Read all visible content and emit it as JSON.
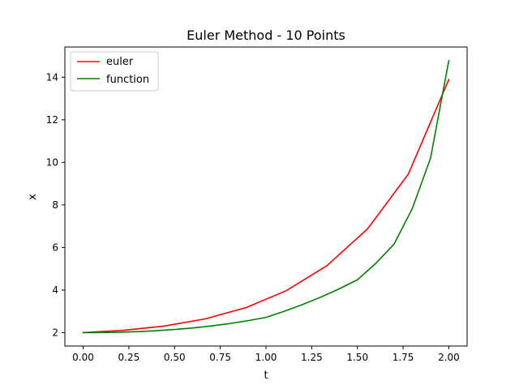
{
  "chart_data": {
    "type": "line",
    "title": "Euler Method - 10 Points",
    "xlabel": "t",
    "ylabel": "x",
    "xlim": [
      -0.1,
      2.1
    ],
    "ylim": [
      1.37,
      15.42
    ],
    "xticks": [
      0.0,
      0.25,
      0.5,
      0.75,
      1.0,
      1.25,
      1.5,
      1.75,
      2.0
    ],
    "xtick_labels": [
      "0.00",
      "0.25",
      "0.50",
      "0.75",
      "1.00",
      "1.25",
      "1.50",
      "1.75",
      "2.00"
    ],
    "yticks": [
      2,
      4,
      6,
      8,
      10,
      12,
      14
    ],
    "ytick_labels": [
      "2",
      "4",
      "6",
      "8",
      "10",
      "12",
      "14"
    ],
    "grid": false,
    "legend_position": "top-left",
    "series": [
      {
        "name": "euler",
        "color": "#ff0000",
        "x": [
          0.0,
          0.2222,
          0.4444,
          0.6667,
          0.8889,
          1.1111,
          1.3333,
          1.5556,
          1.7778,
          2.0
        ],
        "y": [
          2.0,
          2.111,
          2.309,
          2.645,
          3.171,
          3.971,
          5.147,
          6.877,
          9.436,
          13.893
        ]
      },
      {
        "name": "function",
        "color": "#008000",
        "x": [
          0.0,
          0.1,
          0.2,
          0.3,
          0.4,
          0.5,
          0.6,
          0.7,
          0.8,
          0.9,
          1.0,
          1.1,
          1.2,
          1.3,
          1.4,
          1.5,
          1.6,
          1.7,
          1.8,
          1.9,
          2.0
        ],
        "y": [
          2.0,
          2.005,
          2.021,
          2.049,
          2.092,
          2.149,
          2.221,
          2.314,
          2.426,
          2.56,
          2.718,
          3.004,
          3.32,
          3.669,
          4.055,
          4.482,
          5.25,
          6.15,
          7.824,
          10.2,
          14.778
        ]
      }
    ]
  }
}
